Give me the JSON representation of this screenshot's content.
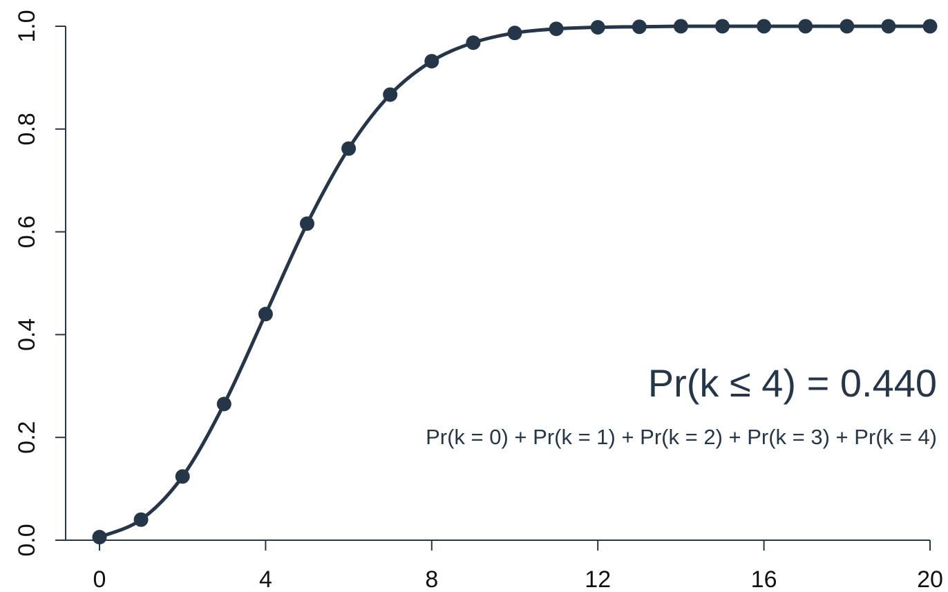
{
  "colors": {
    "series": "#253649",
    "axis": "#253649",
    "text": "#253649",
    "background": "#ffffff"
  },
  "annotations": {
    "main": "Pr(k ≤ 4) = 0.440",
    "sub": "Pr(k = 0) + Pr(k = 1) + Pr(k = 2) + Pr(k = 3)  + Pr(k = 4)"
  },
  "chart_data": {
    "type": "line",
    "title": "",
    "xlabel": "",
    "ylabel": "",
    "xlim": [
      0,
      20
    ],
    "ylim": [
      0,
      1
    ],
    "x_ticks": [
      0,
      4,
      8,
      12,
      16,
      20
    ],
    "x_tick_labels": [
      "0",
      "4",
      "8",
      "12",
      "16",
      "20"
    ],
    "y_ticks": [
      0,
      0.2,
      0.4,
      0.6,
      0.8,
      1.0
    ],
    "y_tick_labels": [
      "0.0",
      "0.2",
      "0.4",
      "0.6",
      "0.8",
      "1.0"
    ],
    "grid": false,
    "legend": "none",
    "series": [
      {
        "marker": "circle",
        "x": [
          0,
          1,
          2,
          3,
          4,
          5,
          6,
          7,
          8,
          9,
          10,
          11,
          12,
          13,
          14,
          15,
          16,
          17,
          18,
          19,
          20
        ],
        "y": [
          0.006,
          0.04,
          0.124,
          0.265,
          0.44,
          0.616,
          0.762,
          0.867,
          0.932,
          0.968,
          0.987,
          0.995,
          0.998,
          0.999,
          1.0,
          1.0,
          1.0,
          1.0,
          1.0,
          1.0,
          1.0
        ]
      }
    ]
  }
}
